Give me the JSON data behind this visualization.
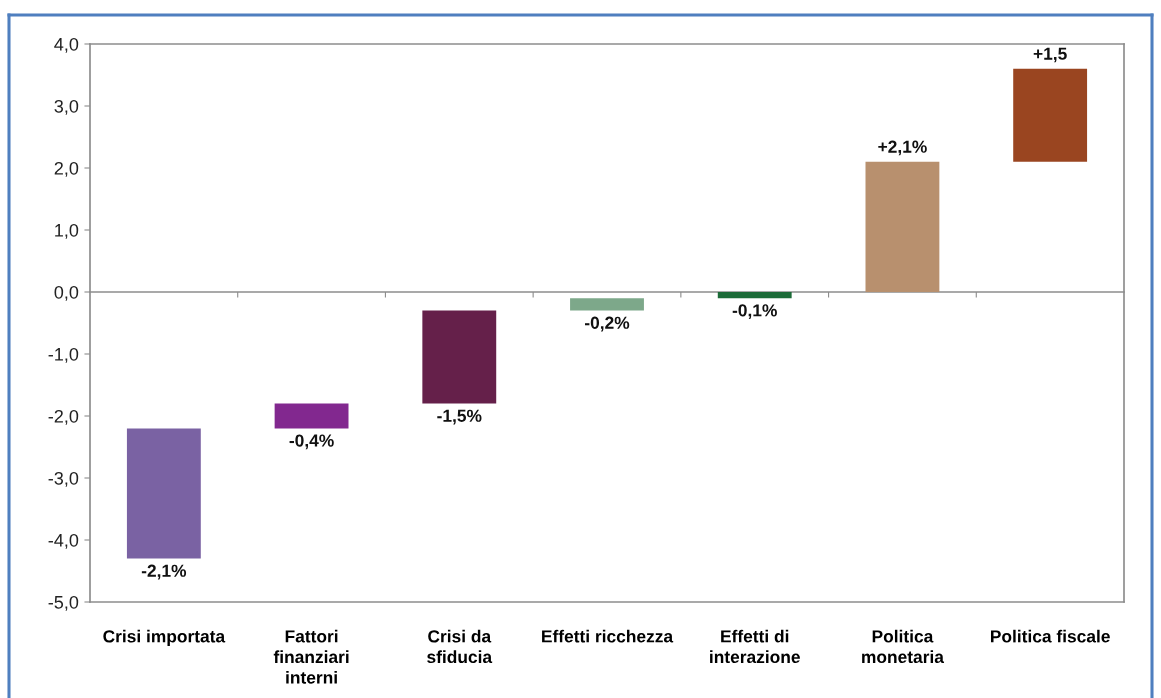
{
  "chart_data": {
    "type": "bar",
    "categories": [
      "Crisi importata",
      "Fattori\nfinanziari\ninterni",
      "Crisi da\nsfiducia",
      "Effetti ricchezza",
      "Effetti di\ninterazione",
      "Politica\nmonetaria",
      "Politica fiscale"
    ],
    "values": [
      -2.1,
      -0.4,
      -1.5,
      -0.2,
      -0.1,
      2.1,
      1.5
    ],
    "base": [
      -2.2,
      -1.8,
      -0.3,
      -0.1,
      0,
      0,
      2.1
    ],
    "colors": [
      "#7a62a3",
      "#82288f",
      "#65204a",
      "#7da88a",
      "#1c6b38",
      "#b8906e",
      "#9a4520"
    ],
    "value_labels": [
      "-2,1%",
      "-0,4%",
      "-1,5%",
      "-0,2%",
      "-0,1%",
      "+2,1%",
      "+1,5"
    ],
    "ylim": [
      -5,
      4
    ],
    "yticks": [
      {
        "value": -5,
        "label": "-5,0"
      },
      {
        "value": -4,
        "label": "-4,0"
      },
      {
        "value": -3,
        "label": "-3,0"
      },
      {
        "value": -2,
        "label": "-2,0"
      },
      {
        "value": -1,
        "label": "-1,0"
      },
      {
        "value": 0,
        "label": "0,0"
      },
      {
        "value": 1,
        "label": "1,0"
      },
      {
        "value": 2,
        "label": "2,0"
      },
      {
        "value": 3,
        "label": "3,0"
      },
      {
        "value": 4,
        "label": "4,0"
      }
    ]
  }
}
